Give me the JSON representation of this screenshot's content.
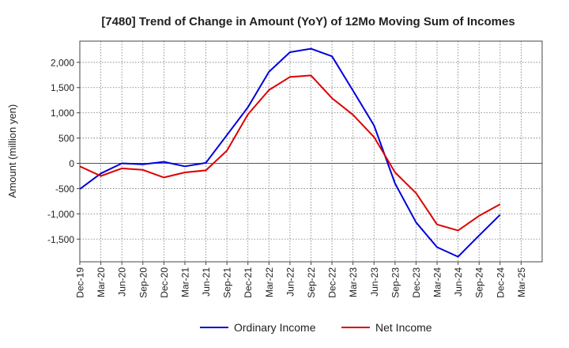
{
  "chart_data": {
    "type": "line",
    "title": "[7480]  Trend of Change in Amount (YoY) of 12Mo Moving Sum of Incomes",
    "xlabel": "",
    "ylabel": "Amount (million yen)",
    "ylim": [
      -1950,
      2420
    ],
    "y_ticks": [
      -1500,
      -1000,
      -500,
      0,
      500,
      1000,
      1500,
      2000
    ],
    "y_tick_labels": [
      "-1,500",
      "-1,000",
      "-500",
      "0",
      "500",
      "1,000",
      "1,500",
      "2,000"
    ],
    "categories": [
      "Dec-19",
      "Mar-20",
      "Jun-20",
      "Sep-20",
      "Dec-20",
      "Mar-21",
      "Jun-21",
      "Sep-21",
      "Dec-21",
      "Mar-22",
      "Jun-22",
      "Sep-22",
      "Dec-22",
      "Mar-23",
      "Jun-23",
      "Sep-23",
      "Dec-23",
      "Mar-24",
      "Jun-24",
      "Sep-24",
      "Dec-24",
      "Mar-25"
    ],
    "series": [
      {
        "name": "Ordinary Income",
        "color": "#0000dd",
        "values": [
          -510,
          -200,
          0,
          -20,
          30,
          -60,
          10,
          560,
          1110,
          1810,
          2200,
          2270,
          2120,
          1440,
          750,
          -400,
          -1170,
          -1660,
          -1850,
          -1430,
          -1020,
          null
        ]
      },
      {
        "name": "Net Income",
        "color": "#dd0000",
        "values": [
          -60,
          -250,
          -100,
          -130,
          -280,
          -180,
          -140,
          250,
          970,
          1450,
          1710,
          1740,
          1290,
          960,
          520,
          -180,
          -590,
          -1210,
          -1330,
          -1040,
          -810,
          null
        ]
      }
    ],
    "grid": true,
    "legend_position": "bottom-center"
  }
}
